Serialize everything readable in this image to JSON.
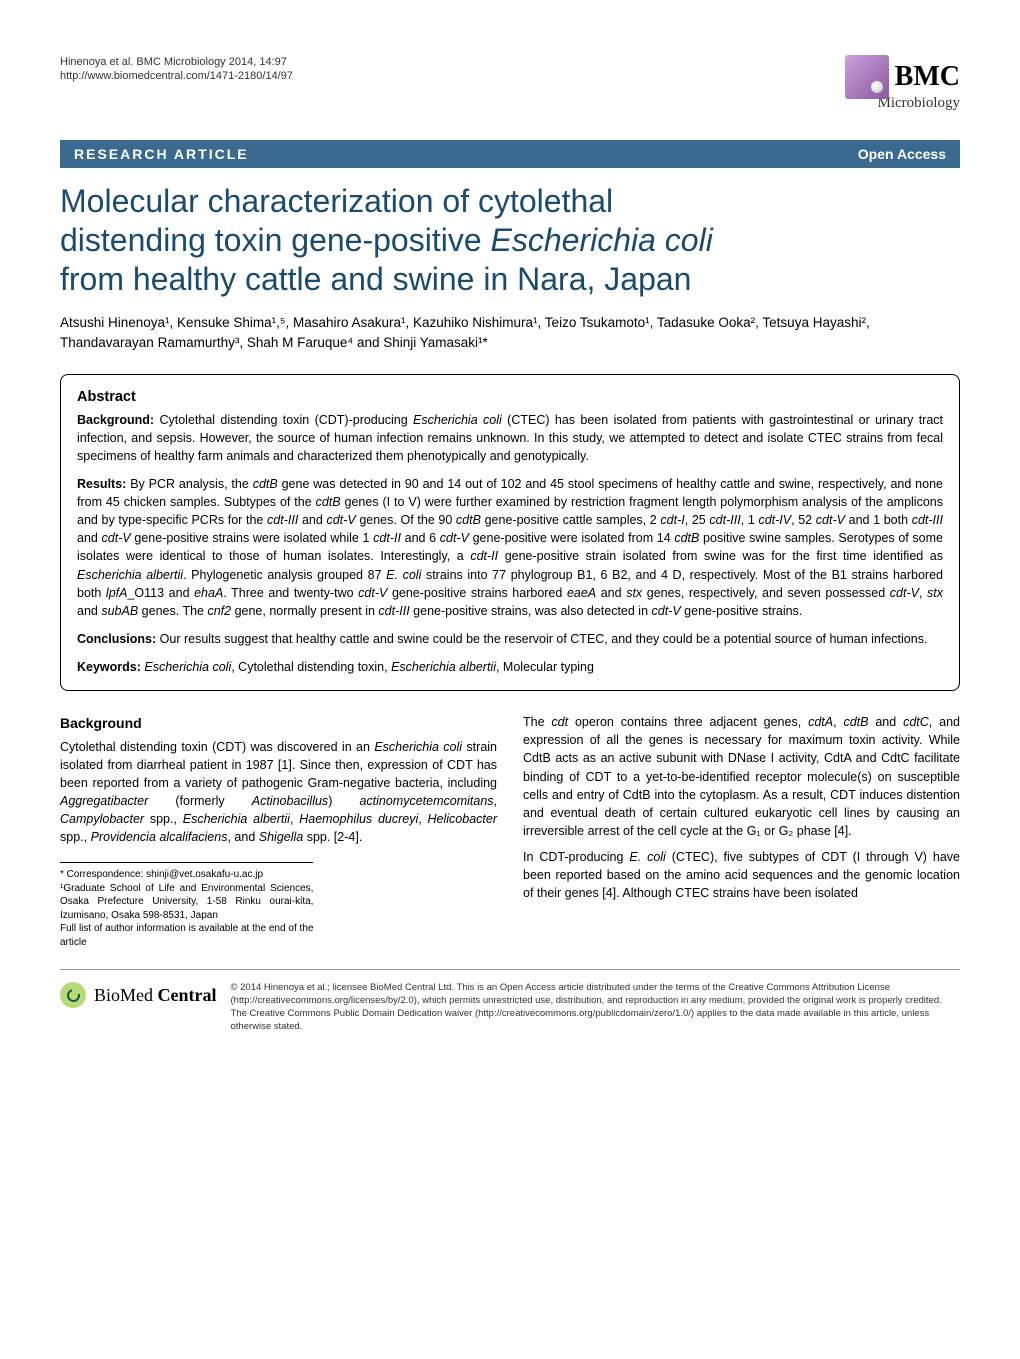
{
  "header": {
    "citation_line1": "Hinenoya et al. BMC Microbiology 2014, 14:97",
    "citation_line2": "http://www.biomedcentral.com/1471-2180/14/97",
    "logo_main": "BMC",
    "logo_sub": "Microbiology"
  },
  "banner": {
    "left": "RESEARCH ARTICLE",
    "right": "Open Access",
    "bg_color": "#3a6a8f"
  },
  "title": {
    "line1": "Molecular characterization of cytolethal",
    "line2_pre": "distending toxin gene-positive ",
    "line2_em": "Escherichia coli",
    "line3": "from healthy cattle and swine in Nara, Japan",
    "color": "#1a4a6e",
    "fontsize": 32
  },
  "authors": {
    "text": "Atsushi Hinenoya¹, Kensuke Shima¹,⁵, Masahiro Asakura¹, Kazuhiko Nishimura¹, Teizo Tsukamoto¹, Tadasuke Ooka², Tetsuya Hayashi², Thandavarayan Ramamurthy³, Shah M Faruque⁴ and Shinji Yamasaki¹*"
  },
  "abstract": {
    "heading": "Abstract",
    "background_label": "Background:",
    "background_text": " Cytolethal distending toxin (CDT)-producing Escherichia coli (CTEC) has been isolated from patients with gastrointestinal or urinary tract infection, and sepsis. However, the source of human infection remains unknown. In this study, we attempted to detect and isolate CTEC strains from fecal specimens of healthy farm animals and characterized them phenotypically and genotypically.",
    "results_label": "Results:",
    "results_text": " By PCR analysis, the cdtB gene was detected in 90 and 14 out of 102 and 45 stool specimens of healthy cattle and swine, respectively, and none from 45 chicken samples. Subtypes of the cdtB genes (I to V) were further examined by restriction fragment length polymorphism analysis of the amplicons and by type-specific PCRs for the cdt-III and cdt-V genes. Of the 90 cdtB gene-positive cattle samples, 2 cdt-I, 25 cdt-III, 1 cdt-IV, 52 cdt-V and 1 both cdt-III and cdt-V gene-positive strains were isolated while 1 cdt-II and 6 cdt-V gene-positive were isolated from 14 cdtB positive swine samples. Serotypes of some isolates were identical to those of human isolates. Interestingly, a cdt-II gene-positive strain isolated from swine was for the first time identified as Escherichia albertii. Phylogenetic analysis grouped 87 E. coli strains into 77 phylogroup B1, 6 B2, and 4 D, respectively. Most of the B1 strains harbored both lpfA_O113 and ehaA. Three and twenty-two cdt-V gene-positive strains harbored eaeA and stx genes, respectively, and seven possessed cdt-V, stx and subAB genes. The cnf2 gene, normally present in cdt-III gene-positive strains, was also detected in cdt-V gene-positive strains.",
    "conclusions_label": "Conclusions:",
    "conclusions_text": " Our results suggest that healthy cattle and swine could be the reservoir of CTEC, and they could be a potential source of human infections.",
    "keywords_label": "Keywords:",
    "keywords_text": " Escherichia coli, Cytolethal distending toxin, Escherichia albertii, Molecular typing"
  },
  "body": {
    "background_heading": "Background",
    "left_p1": "Cytolethal distending toxin (CDT) was discovered in an Escherichia coli strain isolated from diarrheal patient in 1987 [1]. Since then, expression of CDT has been reported from a variety of pathogenic Gram-negative bacteria, including Aggregatibacter (formerly Actinobacillus) actinomycetemcomitans, Campylobacter spp., Escherichia albertii, Haemophilus ducreyi, Helicobacter spp., Providencia alcalifaciens, and Shigella spp. [2-4].",
    "right_p1": "The cdt operon contains three adjacent genes, cdtA, cdtB and cdtC, and expression of all the genes is necessary for maximum toxin activity. While CdtB acts as an active subunit with DNase I activity, CdtA and CdtC facilitate binding of CDT to a yet-to-be-identified receptor molecule(s) on susceptible cells and entry of CdtB into the cytoplasm. As a result, CDT induces distention and eventual death of certain cultured eukaryotic cell lines by causing an irreversible arrest of the cell cycle at the G₁ or G₂ phase [4].",
    "right_p2": "In CDT-producing E. coli (CTEC), five subtypes of CDT (I through V) have been reported based on the amino acid sequences and the genomic location of their genes [4]. Although CTEC strains have been isolated"
  },
  "footnotes": {
    "l1": "* Correspondence: shinji@vet.osakafu-u.ac.jp",
    "l2": "¹Graduate School of Life and Environmental Sciences, Osaka Prefecture University, 1-58 Rinku ourai-kita, Izumisano, Osaka 598-8531, Japan",
    "l3": "Full list of author information is available at the end of the article"
  },
  "footer": {
    "logo_text": "BioMed Central",
    "license": "© 2014 Hinenoya et al.; licensee BioMed Central Ltd. This is an Open Access article distributed under the terms of the Creative Commons Attribution License (http://creativecommons.org/licenses/by/2.0), which permits unrestricted use, distribution, and reproduction in any medium, provided the original work is properly credited. The Creative Commons Public Domain Dedication waiver (http://creativecommons.org/publicdomain/zero/1.0/) applies to the data made available in this article, unless otherwise stated."
  }
}
